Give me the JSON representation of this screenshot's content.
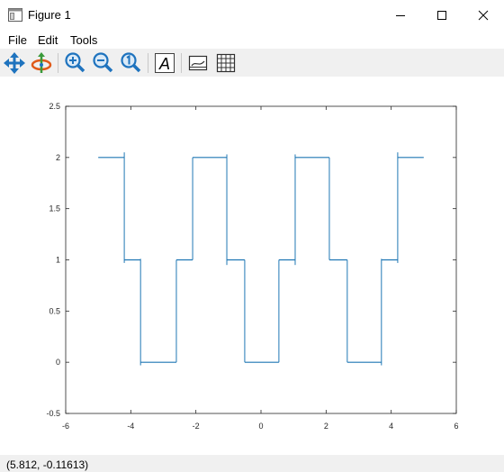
{
  "window": {
    "title": "Figure 1"
  },
  "menu": {
    "file": "File",
    "edit": "Edit",
    "tools": "Tools"
  },
  "toolbar": {
    "tools": [
      "pan-icon",
      "rotate-icon",
      "zoom-in-icon",
      "zoom-out-icon",
      "zoom-reset-icon",
      "insert-text-icon",
      "toggle-axes-icon",
      "toggle-grid-icon"
    ],
    "insert_text_glyph": "A"
  },
  "status": {
    "coordinates": "(5.812, -0.11613)"
  },
  "colors": {
    "line": "#1f77b4",
    "accent": "#0078d7"
  },
  "chart_data": {
    "type": "line",
    "xlim": [
      -6,
      6
    ],
    "ylim": [
      -0.5,
      2.5
    ],
    "xticks": [
      "-6",
      "-4",
      "-2",
      "0",
      "2",
      "4",
      "6"
    ],
    "yticks": [
      "-0.5",
      "0",
      "0.5",
      "1",
      "1.5",
      "2",
      "2.5"
    ],
    "grid": false,
    "series": [
      {
        "segments": [
          {
            "x": [
              -5,
              -4.2
            ],
            "y": [
              2,
              2
            ]
          },
          {
            "x": [
              -4.2,
              -3.7
            ],
            "y": [
              1,
              1
            ]
          },
          {
            "x": [
              -3.7,
              -2.6
            ],
            "y": [
              0,
              0
            ]
          },
          {
            "x": [
              -2.6,
              -2.1
            ],
            "y": [
              1,
              1
            ]
          },
          {
            "x": [
              -2.1,
              -1.05
            ],
            "y": [
              2,
              2
            ]
          },
          {
            "x": [
              -1.05,
              -0.5
            ],
            "y": [
              1,
              1
            ]
          },
          {
            "x": [
              -0.5,
              0.55
            ],
            "y": [
              0,
              0
            ]
          },
          {
            "x": [
              0.55,
              1.05
            ],
            "y": [
              1,
              1
            ]
          },
          {
            "x": [
              1.05,
              2.1
            ],
            "y": [
              2,
              2
            ]
          },
          {
            "x": [
              2.1,
              2.65
            ],
            "y": [
              1,
              1
            ]
          },
          {
            "x": [
              2.65,
              3.7
            ],
            "y": [
              0,
              0
            ]
          },
          {
            "x": [
              3.7,
              4.2
            ],
            "y": [
              1,
              1
            ]
          },
          {
            "x": [
              4.2,
              5
            ],
            "y": [
              2,
              2
            ]
          }
        ],
        "jumps": [
          {
            "x": -4.2,
            "y": [
              2.05,
              0.97
            ]
          },
          {
            "x": -3.7,
            "y": [
              1.01,
              -0.03
            ]
          },
          {
            "x": -2.6,
            "y": [
              0,
              1
            ]
          },
          {
            "x": -2.1,
            "y": [
              1,
              2
            ]
          },
          {
            "x": -1.05,
            "y": [
              2.03,
              0.95
            ]
          },
          {
            "x": -0.5,
            "y": [
              1,
              0
            ]
          },
          {
            "x": 0.55,
            "y": [
              0,
              1
            ]
          },
          {
            "x": 1.05,
            "y": [
              0.95,
              2.03
            ]
          },
          {
            "x": 2.1,
            "y": [
              2,
              1
            ]
          },
          {
            "x": 2.65,
            "y": [
              1,
              0
            ]
          },
          {
            "x": 3.7,
            "y": [
              -0.03,
              1.01
            ]
          },
          {
            "x": 4.2,
            "y": [
              0.97,
              2.05
            ]
          }
        ]
      }
    ]
  }
}
